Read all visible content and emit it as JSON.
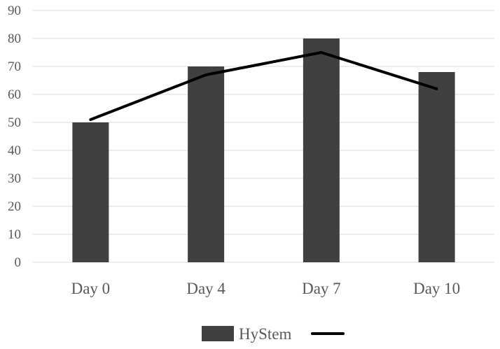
{
  "chart_data": {
    "type": "bar",
    "title": "",
    "xlabel": "",
    "ylabel": "",
    "categories": [
      "Day 0",
      "Day 4",
      "Day 7",
      "Day 10"
    ],
    "ylim": [
      0,
      90
    ],
    "yticks": [
      0,
      10,
      20,
      30,
      40,
      50,
      60,
      70,
      80,
      90
    ],
    "grid": true,
    "legend_position": "bottom",
    "series": [
      {
        "name": "HyStem",
        "type": "bar",
        "color": "#404040",
        "values": [
          50,
          70,
          80,
          68
        ]
      },
      {
        "name": "",
        "type": "line",
        "color": "#000000",
        "values": [
          51,
          67,
          75,
          62
        ]
      }
    ]
  }
}
